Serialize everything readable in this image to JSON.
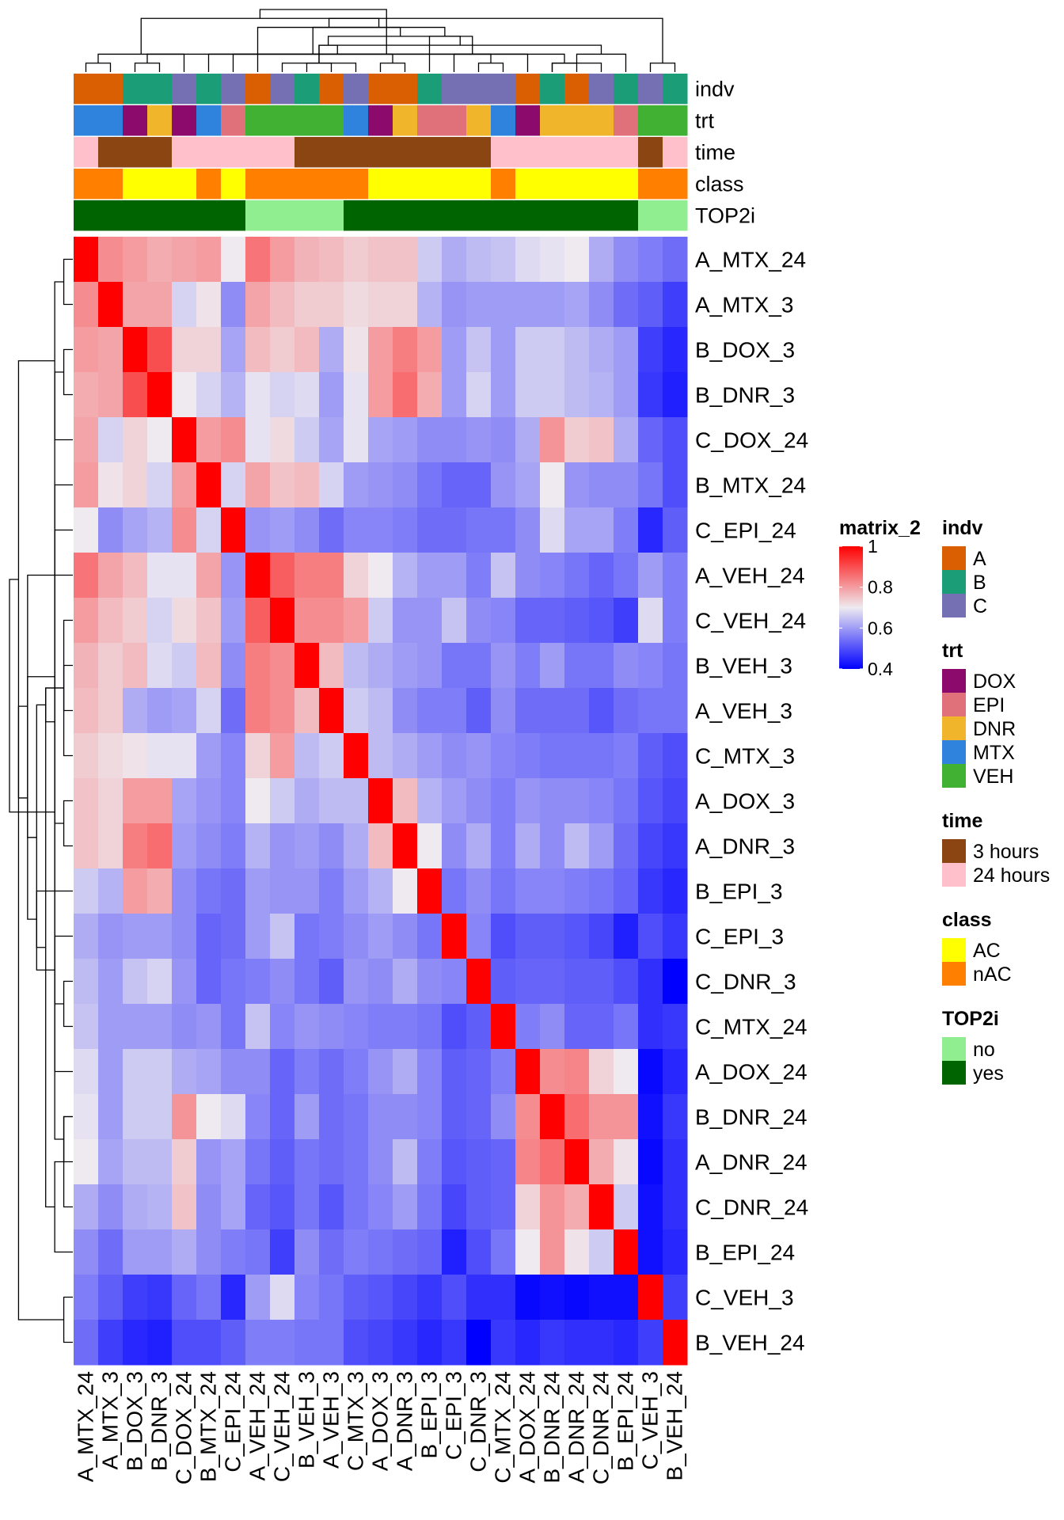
{
  "chart_data": {
    "type": "heatmap",
    "title": "",
    "samples": [
      "A_MTX_24",
      "A_MTX_3",
      "B_DOX_3",
      "B_DNR_3",
      "C_DOX_24",
      "B_MTX_24",
      "C_EPI_24",
      "A_VEH_24",
      "C_VEH_24",
      "B_VEH_3",
      "A_VEH_3",
      "C_MTX_3",
      "A_DOX_3",
      "A_DNR_3",
      "B_EPI_3",
      "C_EPI_3",
      "C_DNR_3",
      "C_MTX_24",
      "A_DOX_24",
      "B_DNR_24",
      "A_DNR_24",
      "C_DNR_24",
      "B_EPI_24",
      "C_VEH_3",
      "B_VEH_24"
    ],
    "row_labels": [
      "A_MTX_24",
      "A_MTX_3",
      "B_DOX_3",
      "B_DNR_3",
      "C_DOX_24",
      "B_MTX_24",
      "C_EPI_24",
      "A_VEH_24",
      "C_VEH_24",
      "B_VEH_3",
      "A_VEH_3",
      "C_MTX_3",
      "A_DOX_3",
      "A_DNR_3",
      "B_EPI_3",
      "C_EPI_3",
      "C_DNR_3",
      "C_MTX_24",
      "A_DOX_24",
      "B_DNR_24",
      "A_DNR_24",
      "C_DNR_24",
      "B_EPI_24",
      "C_VEH_3",
      "B_VEH_24"
    ],
    "col_labels": [
      "A_MTX_24",
      "A_MTX_3",
      "B_DOX_3",
      "B_DNR_3",
      "C_DOX_24",
      "B_MTX_24",
      "C_EPI_24",
      "A_VEH_24",
      "C_VEH_24",
      "B_VEH_3",
      "A_VEH_3",
      "C_MTX_3",
      "A_DOX_3",
      "A_DNR_3",
      "B_EPI_3",
      "C_EPI_3",
      "C_DNR_3",
      "C_MTX_24",
      "A_DOX_24",
      "B_DNR_24",
      "A_DNR_24",
      "C_DNR_24",
      "B_EPI_24",
      "C_VEH_3",
      "B_VEH_24"
    ],
    "annotation_rows": [
      "indv",
      "trt",
      "time",
      "class",
      "TOP2i"
    ],
    "annotations": {
      "indv": [
        "A",
        "A",
        "B",
        "B",
        "C",
        "B",
        "C",
        "A",
        "C",
        "B",
        "A",
        "C",
        "A",
        "A",
        "B",
        "C",
        "C",
        "C",
        "A",
        "B",
        "A",
        "C",
        "B",
        "C",
        "B"
      ],
      "trt": [
        "MTX",
        "MTX",
        "DOX",
        "DNR",
        "DOX",
        "MTX",
        "EPI",
        "VEH",
        "VEH",
        "VEH",
        "VEH",
        "MTX",
        "DOX",
        "DNR",
        "EPI",
        "EPI",
        "DNR",
        "MTX",
        "DOX",
        "DNR",
        "DNR",
        "DNR",
        "EPI",
        "VEH",
        "VEH"
      ],
      "time": [
        "24 hours",
        "3 hours",
        "3 hours",
        "3 hours",
        "24 hours",
        "24 hours",
        "24 hours",
        "24 hours",
        "24 hours",
        "3 hours",
        "3 hours",
        "3 hours",
        "3 hours",
        "3 hours",
        "3 hours",
        "3 hours",
        "3 hours",
        "24 hours",
        "24 hours",
        "24 hours",
        "24 hours",
        "24 hours",
        "24 hours",
        "3 hours",
        "24 hours"
      ],
      "class": [
        "nAC",
        "nAC",
        "AC",
        "AC",
        "AC",
        "nAC",
        "AC",
        "nAC",
        "nAC",
        "nAC",
        "nAC",
        "nAC",
        "AC",
        "AC",
        "AC",
        "AC",
        "AC",
        "nAC",
        "AC",
        "AC",
        "AC",
        "AC",
        "AC",
        "nAC",
        "nAC"
      ],
      "TOP2i": [
        "yes",
        "yes",
        "yes",
        "yes",
        "yes",
        "yes",
        "yes",
        "no",
        "no",
        "no",
        "no",
        "yes",
        "yes",
        "yes",
        "yes",
        "yes",
        "yes",
        "yes",
        "yes",
        "yes",
        "yes",
        "yes",
        "yes",
        "no",
        "no"
      ]
    },
    "annotation_colors": {
      "indv": {
        "A": "#d95f02",
        "B": "#1b9e77",
        "C": "#7570b3"
      },
      "trt": {
        "DOX": "#8b0a6b",
        "EPI": "#e07079",
        "DNR": "#f0b52b",
        "MTX": "#2f83dc",
        "VEH": "#41b134"
      },
      "time": {
        "3 hours": "#8b4513",
        "24 hours": "#ffc0cb"
      },
      "class": {
        "AC": "#ffff00",
        "nAC": "#ff8000"
      },
      "TOP2i": {
        "no": "#90ee90",
        "yes": "#006400"
      }
    },
    "legends": [
      {
        "title": "indv",
        "items": [
          "A",
          "B",
          "C"
        ]
      },
      {
        "title": "trt",
        "items": [
          "DOX",
          "EPI",
          "DNR",
          "MTX",
          "VEH"
        ]
      },
      {
        "title": "time",
        "items": [
          "3 hours",
          "24 hours"
        ]
      },
      {
        "title": "class",
        "items": [
          "AC",
          "nAC"
        ]
      },
      {
        "title": "TOP2i",
        "items": [
          "no",
          "yes"
        ]
      }
    ],
    "colorbar": {
      "title": "matrix_2",
      "min": 0.4,
      "max": 1.0,
      "ticks": [
        0.4,
        0.6,
        0.8,
        1
      ],
      "tick_labels": [
        "0.4",
        "0.6",
        "0.8",
        "1"
      ],
      "stops": [
        {
          "v": 0.4,
          "c": "#0000ff"
        },
        {
          "v": 0.7,
          "c": "#eeeaf0"
        },
        {
          "v": 1.0,
          "c": "#ff0000"
        }
      ]
    },
    "values": [
      [
        1.0,
        0.82,
        0.8,
        0.78,
        0.79,
        0.8,
        0.7,
        0.85,
        0.8,
        0.77,
        0.76,
        0.74,
        0.75,
        0.75,
        0.66,
        0.62,
        0.64,
        0.65,
        0.68,
        0.69,
        0.7,
        0.62,
        0.58,
        0.56,
        0.54
      ],
      [
        0.82,
        1.0,
        0.79,
        0.79,
        0.67,
        0.71,
        0.58,
        0.79,
        0.76,
        0.74,
        0.74,
        0.72,
        0.73,
        0.73,
        0.63,
        0.59,
        0.6,
        0.6,
        0.6,
        0.6,
        0.61,
        0.58,
        0.54,
        0.52,
        0.48
      ],
      [
        0.8,
        0.79,
        1.0,
        0.9,
        0.73,
        0.73,
        0.61,
        0.76,
        0.74,
        0.76,
        0.62,
        0.71,
        0.8,
        0.84,
        0.8,
        0.6,
        0.65,
        0.6,
        0.66,
        0.66,
        0.64,
        0.62,
        0.6,
        0.48,
        0.45
      ],
      [
        0.78,
        0.79,
        0.9,
        1.0,
        0.7,
        0.67,
        0.63,
        0.69,
        0.67,
        0.68,
        0.6,
        0.69,
        0.8,
        0.86,
        0.78,
        0.6,
        0.67,
        0.6,
        0.66,
        0.66,
        0.64,
        0.63,
        0.6,
        0.47,
        0.44
      ],
      [
        0.79,
        0.67,
        0.73,
        0.7,
        1.0,
        0.8,
        0.82,
        0.69,
        0.72,
        0.66,
        0.61,
        0.69,
        0.61,
        0.6,
        0.58,
        0.58,
        0.59,
        0.58,
        0.62,
        0.81,
        0.74,
        0.75,
        0.62,
        0.53,
        0.5
      ],
      [
        0.8,
        0.71,
        0.73,
        0.67,
        0.8,
        1.0,
        0.67,
        0.79,
        0.75,
        0.76,
        0.67,
        0.6,
        0.59,
        0.58,
        0.55,
        0.53,
        0.53,
        0.59,
        0.61,
        0.7,
        0.59,
        0.58,
        0.58,
        0.55,
        0.5
      ],
      [
        0.7,
        0.58,
        0.61,
        0.63,
        0.82,
        0.67,
        1.0,
        0.59,
        0.6,
        0.58,
        0.54,
        0.57,
        0.57,
        0.56,
        0.54,
        0.54,
        0.55,
        0.55,
        0.58,
        0.68,
        0.61,
        0.61,
        0.56,
        0.45,
        0.52
      ],
      [
        0.85,
        0.79,
        0.76,
        0.69,
        0.69,
        0.79,
        0.59,
        1.0,
        0.88,
        0.84,
        0.84,
        0.73,
        0.7,
        0.63,
        0.6,
        0.6,
        0.56,
        0.65,
        0.58,
        0.57,
        0.55,
        0.53,
        0.55,
        0.6,
        0.56
      ],
      [
        0.8,
        0.76,
        0.74,
        0.67,
        0.72,
        0.75,
        0.6,
        0.88,
        1.0,
        0.82,
        0.82,
        0.8,
        0.66,
        0.59,
        0.59,
        0.65,
        0.58,
        0.57,
        0.53,
        0.53,
        0.52,
        0.51,
        0.48,
        0.68,
        0.56
      ],
      [
        0.77,
        0.74,
        0.76,
        0.68,
        0.66,
        0.76,
        0.58,
        0.84,
        0.82,
        1.0,
        0.76,
        0.64,
        0.62,
        0.6,
        0.59,
        0.55,
        0.55,
        0.59,
        0.56,
        0.6,
        0.55,
        0.55,
        0.58,
        0.57,
        0.55
      ],
      [
        0.76,
        0.74,
        0.62,
        0.6,
        0.61,
        0.67,
        0.54,
        0.84,
        0.82,
        0.76,
        1.0,
        0.66,
        0.64,
        0.58,
        0.56,
        0.56,
        0.52,
        0.58,
        0.54,
        0.54,
        0.54,
        0.51,
        0.54,
        0.55,
        0.55
      ],
      [
        0.74,
        0.72,
        0.71,
        0.69,
        0.69,
        0.6,
        0.57,
        0.73,
        0.8,
        0.64,
        0.66,
        1.0,
        0.64,
        0.62,
        0.6,
        0.58,
        0.59,
        0.57,
        0.56,
        0.55,
        0.55,
        0.55,
        0.56,
        0.52,
        0.5
      ],
      [
        0.75,
        0.73,
        0.8,
        0.8,
        0.61,
        0.59,
        0.57,
        0.7,
        0.66,
        0.62,
        0.64,
        0.64,
        1.0,
        0.76,
        0.63,
        0.6,
        0.58,
        0.56,
        0.59,
        0.58,
        0.58,
        0.57,
        0.55,
        0.51,
        0.49
      ],
      [
        0.75,
        0.73,
        0.84,
        0.86,
        0.6,
        0.58,
        0.56,
        0.63,
        0.59,
        0.6,
        0.58,
        0.62,
        0.76,
        1.0,
        0.7,
        0.58,
        0.62,
        0.56,
        0.62,
        0.58,
        0.64,
        0.6,
        0.54,
        0.49,
        0.47
      ],
      [
        0.66,
        0.63,
        0.8,
        0.78,
        0.58,
        0.55,
        0.54,
        0.6,
        0.59,
        0.59,
        0.56,
        0.6,
        0.63,
        0.7,
        1.0,
        0.55,
        0.58,
        0.55,
        0.57,
        0.57,
        0.56,
        0.55,
        0.53,
        0.47,
        0.45
      ],
      [
        0.62,
        0.59,
        0.6,
        0.6,
        0.58,
        0.53,
        0.54,
        0.6,
        0.65,
        0.55,
        0.56,
        0.58,
        0.6,
        0.58,
        0.55,
        1.0,
        0.57,
        0.5,
        0.52,
        0.52,
        0.51,
        0.49,
        0.44,
        0.5,
        0.47
      ],
      [
        0.64,
        0.6,
        0.65,
        0.67,
        0.59,
        0.53,
        0.55,
        0.56,
        0.58,
        0.55,
        0.52,
        0.59,
        0.58,
        0.62,
        0.58,
        0.57,
        1.0,
        0.52,
        0.53,
        0.53,
        0.52,
        0.52,
        0.5,
        0.46,
        0.4
      ],
      [
        0.65,
        0.6,
        0.6,
        0.6,
        0.58,
        0.59,
        0.55,
        0.65,
        0.57,
        0.59,
        0.58,
        0.57,
        0.56,
        0.56,
        0.55,
        0.5,
        0.52,
        1.0,
        0.56,
        0.58,
        0.53,
        0.53,
        0.55,
        0.46,
        0.47
      ],
      [
        0.68,
        0.6,
        0.66,
        0.66,
        0.62,
        0.61,
        0.58,
        0.58,
        0.53,
        0.56,
        0.54,
        0.56,
        0.59,
        0.62,
        0.57,
        0.52,
        0.53,
        0.56,
        1.0,
        0.82,
        0.83,
        0.73,
        0.7,
        0.41,
        0.45
      ],
      [
        0.69,
        0.6,
        0.66,
        0.66,
        0.81,
        0.7,
        0.68,
        0.57,
        0.53,
        0.6,
        0.54,
        0.55,
        0.58,
        0.58,
        0.57,
        0.52,
        0.53,
        0.58,
        0.82,
        1.0,
        0.86,
        0.81,
        0.81,
        0.42,
        0.47
      ],
      [
        0.7,
        0.61,
        0.64,
        0.64,
        0.74,
        0.59,
        0.61,
        0.55,
        0.52,
        0.55,
        0.54,
        0.55,
        0.58,
        0.64,
        0.56,
        0.51,
        0.52,
        0.53,
        0.83,
        0.86,
        1.0,
        0.78,
        0.71,
        0.41,
        0.46
      ],
      [
        0.62,
        0.58,
        0.62,
        0.63,
        0.75,
        0.58,
        0.61,
        0.53,
        0.51,
        0.55,
        0.51,
        0.55,
        0.57,
        0.6,
        0.55,
        0.49,
        0.52,
        0.53,
        0.73,
        0.81,
        0.78,
        1.0,
        0.66,
        0.42,
        0.46
      ],
      [
        0.58,
        0.54,
        0.6,
        0.6,
        0.62,
        0.58,
        0.56,
        0.55,
        0.48,
        0.58,
        0.54,
        0.56,
        0.55,
        0.54,
        0.53,
        0.44,
        0.5,
        0.55,
        0.7,
        0.81,
        0.71,
        0.66,
        1.0,
        0.42,
        0.45
      ],
      [
        0.56,
        0.52,
        0.48,
        0.47,
        0.53,
        0.55,
        0.45,
        0.6,
        0.68,
        0.57,
        0.55,
        0.52,
        0.51,
        0.49,
        0.47,
        0.5,
        0.46,
        0.46,
        0.41,
        0.42,
        0.41,
        0.42,
        0.42,
        1.0,
        0.48
      ],
      [
        0.54,
        0.48,
        0.45,
        0.44,
        0.5,
        0.5,
        0.52,
        0.56,
        0.56,
        0.55,
        0.55,
        0.5,
        0.49,
        0.47,
        0.45,
        0.47,
        0.4,
        0.47,
        0.45,
        0.47,
        0.46,
        0.46,
        0.45,
        0.48,
        1.0
      ]
    ],
    "dendrogram": [
      [
        19,
        20
      ],
      [
        19,
        21
      ],
      [
        2,
        3
      ],
      [
        9,
        10
      ],
      [
        26,
        22
      ],
      [
        27,
        18
      ],
      [
        0,
        1
      ],
      [
        8,
        11
      ],
      [
        28,
        29
      ],
      [
        31,
        4
      ],
      [
        12,
        13
      ],
      [
        33,
        14
      ],
      [
        24,
        23
      ],
      [
        25,
        5
      ],
      [
        16,
        17
      ],
      [
        39,
        15
      ],
      [
        32,
        30
      ],
      [
        35,
        6
      ],
      [
        41,
        40
      ],
      [
        36,
        42
      ],
      [
        43,
        7
      ],
      [
        44,
        34
      ],
      [
        45,
        37
      ],
      [
        46,
        38
      ]
    ]
  }
}
